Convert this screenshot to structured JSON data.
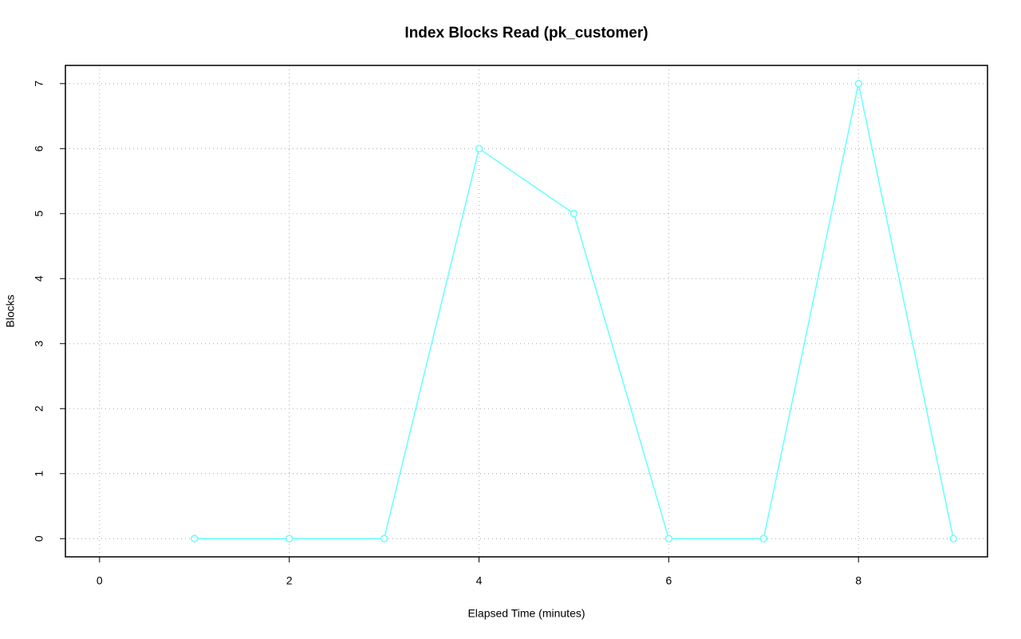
{
  "chart_data": {
    "type": "line",
    "title": "Index Blocks Read (pk_customer)",
    "x_label": "Elapsed Time (minutes)",
    "y_label": "Blocks",
    "x": [
      1,
      2,
      3,
      4,
      5,
      6,
      7,
      8,
      9
    ],
    "series": [
      {
        "name": "pk_customer",
        "color": "#66ffff",
        "values": [
          0,
          0,
          0,
          6,
          5,
          0,
          0,
          7,
          0
        ]
      }
    ],
    "xlim": [
      -0.36,
      9.36
    ],
    "xticks": [
      0,
      2,
      4,
      6,
      8
    ],
    "ylim": [
      -0.28,
      7.28
    ],
    "yticks": [
      0,
      1,
      2,
      3,
      4,
      5,
      6,
      7
    ],
    "grid": true
  }
}
